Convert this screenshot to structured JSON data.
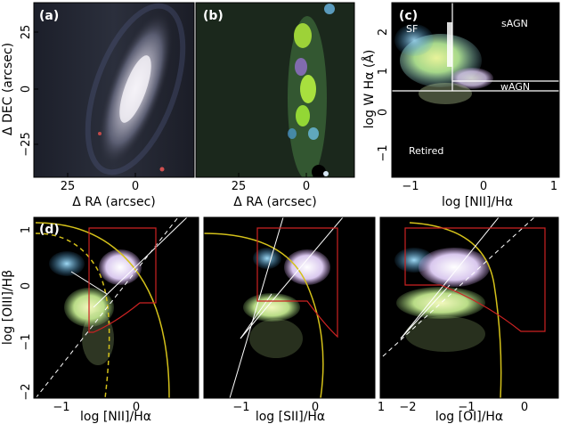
{
  "panels": {
    "a": {
      "label": "(a)",
      "xlabel": "Δ RA (arcsec)",
      "ylabel": "Δ DEC (arcsec)",
      "xticks": [
        "25",
        "0"
      ],
      "yticks": [
        "25",
        "0",
        "−25"
      ]
    },
    "b": {
      "label": "(b)",
      "xlabel": "Δ RA (arcsec)",
      "xticks": [
        "25",
        "0"
      ]
    },
    "c": {
      "label": "(c)",
      "xlabel": "log [NII]/Hα",
      "ylabel": "log W Hα (Å)",
      "xticks": [
        "−1",
        "0",
        "1"
      ],
      "yticks": [
        "2",
        "1",
        "0",
        "−1"
      ],
      "regions": {
        "sf": "SF",
        "sagn": "sAGN",
        "wagn": "wAGN",
        "retired": "Retired"
      }
    },
    "d": {
      "label": "(d)",
      "ylabel": "log [OIII]/Hβ",
      "yticks": [
        "1",
        "0",
        "−1",
        "−2"
      ],
      "sub": [
        {
          "xlabel": "log [NII]/Hα",
          "xticks": [
            "−1",
            "0"
          ]
        },
        {
          "xlabel": "log [SII]/Hα",
          "xticks": [
            "−1",
            "0",
            "1"
          ]
        },
        {
          "xlabel": "log [OI]/Hα",
          "xticks": [
            "−2",
            "−1",
            "0"
          ]
        }
      ]
    }
  },
  "colors": {
    "frame": "#000000",
    "text": "#000000",
    "demarcation": "#ffffff",
    "kauffmann": "#d4c11a",
    "box": "#cc2222"
  }
}
